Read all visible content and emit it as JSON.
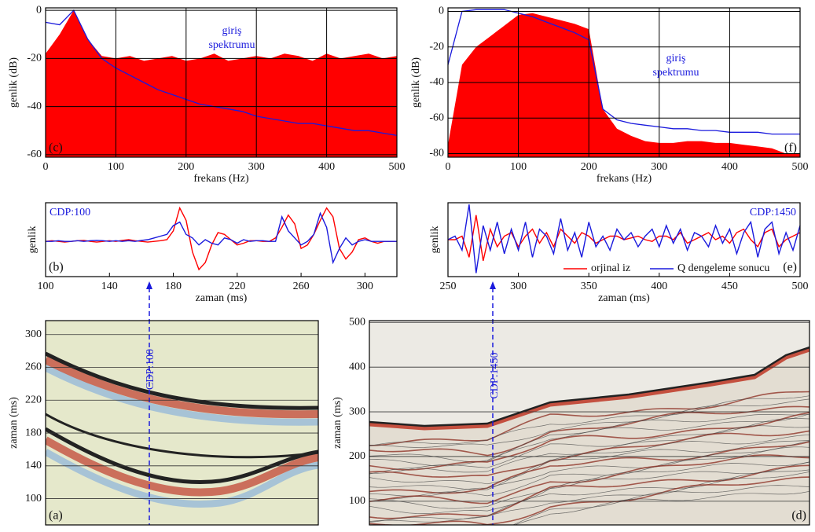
{
  "chart_data": [
    {
      "type": "area",
      "xlabel": "frekans (Hz)",
      "ylabel": "genlik (dB)",
      "label": "(c)",
      "annotation": [
        "giriş",
        "spektrumu"
      ],
      "xlim": [
        0,
        500
      ],
      "xticks": [
        0,
        100,
        200,
        300,
        400,
        500
      ],
      "ylim": [
        -61,
        1
      ],
      "yticks": [
        -60,
        -40,
        -20,
        0
      ],
      "grid": true,
      "x": [
        0,
        20,
        40,
        60,
        80,
        100,
        120,
        140,
        160,
        180,
        200,
        220,
        240,
        260,
        280,
        300,
        320,
        340,
        360,
        380,
        400,
        420,
        440,
        460,
        480,
        500
      ],
      "series": [
        {
          "color": "#ff0000",
          "style": "area",
          "values": [
            -18,
            -10,
            0,
            -12,
            -19,
            -20,
            -19,
            -21,
            -20,
            -19,
            -21,
            -20,
            -18,
            -21,
            -20,
            -19,
            -20,
            -18,
            -19,
            -21,
            -18,
            -20,
            -19,
            -18,
            -20,
            -19
          ]
        },
        {
          "color": "#1a1add",
          "style": "line",
          "values": [
            -5,
            -6,
            0,
            -12,
            -20,
            -24,
            -27,
            -30,
            -33,
            -35,
            -37,
            -39,
            -40,
            -41,
            -42,
            -44,
            -45,
            -46,
            -47,
            -47,
            -48,
            -49,
            -50,
            -50,
            -51,
            -52
          ]
        }
      ]
    },
    {
      "type": "area",
      "xlabel": "frekans (Hz)",
      "ylabel": "genlik (dB)",
      "label": "(f)",
      "annotation": [
        "giriş",
        "spektrumu"
      ],
      "xlim": [
        0,
        500
      ],
      "xticks": [
        0,
        100,
        200,
        300,
        400,
        500
      ],
      "ylim": [
        -82,
        2
      ],
      "yticks": [
        -80,
        -60,
        -40,
        -20,
        0
      ],
      "grid": true,
      "x": [
        0,
        20,
        40,
        60,
        80,
        100,
        120,
        140,
        160,
        180,
        200,
        220,
        240,
        260,
        280,
        300,
        320,
        340,
        360,
        380,
        400,
        420,
        440,
        460,
        480,
        500
      ],
      "series": [
        {
          "color": "#ff0000",
          "style": "area",
          "values": [
            -75,
            -30,
            -20,
            -14,
            -8,
            -2,
            -1,
            -3,
            -5,
            -7,
            -10,
            -55,
            -66,
            -70,
            -73,
            -74,
            -74,
            -73,
            -73,
            -74,
            -74,
            -75,
            -76,
            -77,
            -80,
            -80
          ]
        },
        {
          "color": "#1a1add",
          "style": "line",
          "values": [
            -30,
            0,
            1,
            1,
            1,
            -1,
            -3,
            -6,
            -9,
            -12,
            -16,
            -55,
            -61,
            -63,
            -64,
            -65,
            -66,
            -66,
            -67,
            -67,
            -68,
            -68,
            -68,
            -69,
            -69,
            -69
          ]
        }
      ]
    },
    {
      "type": "line",
      "xlabel": "zaman (ms)",
      "ylabel": "genlik",
      "label": "(b)",
      "annotation": "CDP:100",
      "xlim": [
        100,
        320
      ],
      "xticks": [
        100,
        140,
        180,
        220,
        260,
        300
      ],
      "ylim": [
        -1,
        1.1
      ],
      "grid": false,
      "x": [
        100,
        104,
        108,
        112,
        116,
        120,
        124,
        128,
        132,
        136,
        140,
        144,
        148,
        152,
        156,
        160,
        164,
        168,
        172,
        176,
        180,
        184,
        188,
        192,
        196,
        200,
        204,
        208,
        212,
        216,
        220,
        224,
        228,
        232,
        236,
        240,
        244,
        248,
        252,
        256,
        260,
        264,
        268,
        272,
        276,
        280,
        284,
        288,
        292,
        296,
        300,
        304,
        308,
        312,
        316,
        320
      ],
      "series": [
        {
          "color": "#ff0000",
          "style": "line",
          "values": [
            0,
            0.02,
            0,
            -0.02,
            0,
            0.02,
            0.03,
            0,
            -0.02,
            0,
            0.02,
            0,
            0.03,
            0.05,
            0.02,
            0,
            -0.02,
            0,
            0.02,
            0.05,
            0.3,
            0.95,
            0.6,
            -0.3,
            -0.8,
            -0.6,
            -0.1,
            0.25,
            0.2,
            0.05,
            -0.1,
            -0.05,
            0.02,
            0.02,
            0,
            0,
            0.1,
            0.4,
            0.75,
            0.5,
            -0.2,
            -0.1,
            0.2,
            0.6,
            0.95,
            0.7,
            -0.2,
            -0.5,
            -0.3,
            0.05,
            0.1,
            0,
            -0.05,
            0,
            0,
            0
          ]
        },
        {
          "color": "#1a1add",
          "style": "line",
          "values": [
            0,
            0,
            0.02,
            0,
            0,
            0.02,
            0,
            0.02,
            0.03,
            0.02,
            0,
            0.02,
            0,
            0.02,
            0,
            0.03,
            0.05,
            0.1,
            0.15,
            0.2,
            0.45,
            0.55,
            0.2,
            0.1,
            -0.1,
            0.05,
            -0.05,
            -0.1,
            0.1,
            0.05,
            -0.05,
            0.05,
            0,
            0.02,
            0.02,
            0,
            0,
            0.7,
            0.3,
            0.1,
            -0.1,
            0,
            0.2,
            0.8,
            0.4,
            -0.6,
            -0.2,
            0.1,
            -0.1,
            0,
            0.05,
            0,
            0,
            0,
            0,
            0
          ]
        }
      ]
    },
    {
      "type": "line",
      "xlabel": "zaman (ms)",
      "ylabel": "genlik",
      "label": "(e)",
      "annotation": "CDP:1450",
      "legend": "lower right",
      "xlim": [
        250,
        500
      ],
      "xticks": [
        250,
        300,
        350,
        400,
        450,
        500
      ],
      "ylim": [
        -1.05,
        1.05
      ],
      "grid": false,
      "x": [
        250,
        255,
        260,
        265,
        270,
        275,
        280,
        285,
        290,
        295,
        300,
        305,
        310,
        315,
        320,
        325,
        330,
        335,
        340,
        345,
        350,
        355,
        360,
        365,
        370,
        375,
        380,
        385,
        390,
        395,
        400,
        405,
        410,
        415,
        420,
        425,
        430,
        435,
        440,
        445,
        450,
        455,
        460,
        465,
        470,
        475,
        480,
        485,
        490,
        495,
        500
      ],
      "series": [
        {
          "name": "orjinal iz",
          "color": "#ff0000",
          "style": "line",
          "values": [
            0,
            0,
            0.1,
            -0.5,
            0.7,
            -0.6,
            0.3,
            -0.2,
            0.1,
            0.2,
            -0.2,
            0.1,
            0.3,
            -0.1,
            0.2,
            -0.2,
            0.3,
            0.1,
            -0.1,
            0.2,
            0.1,
            -0.1,
            0,
            0.1,
            0.1,
            0,
            0.05,
            0.1,
            0,
            -0.05,
            0.1,
            0.1,
            0,
            0.2,
            -0.1,
            0,
            0.1,
            0.2,
            0,
            0.1,
            -0.1,
            0.2,
            0.3,
            0,
            -0.2,
            0.2,
            0.3,
            -0.2,
            0,
            0.1,
            0.2
          ]
        },
        {
          "name": "Q dengeleme sonucu",
          "color": "#1a1add",
          "style": "line",
          "values": [
            0,
            0.1,
            -0.3,
            1,
            -0.95,
            0.4,
            -0.3,
            0.5,
            -0.4,
            0.3,
            -0.3,
            0.5,
            -0.5,
            0.3,
            0.1,
            -0.4,
            0.6,
            -0.3,
            0.2,
            -0.5,
            0.5,
            -0.2,
            0.1,
            -0.3,
            0.3,
            0,
            0.2,
            -0.2,
            0.1,
            0.3,
            -0.2,
            0.4,
            -0.1,
            0.3,
            -0.3,
            0.2,
            0.1,
            -0.2,
            0.4,
            -0.1,
            0.3,
            -0.4,
            0.2,
            0.5,
            -0.5,
            0.3,
            0.5,
            -0.4,
            0.2,
            -0.3,
            0.4
          ]
        }
      ]
    },
    {
      "type": "seismic",
      "ylabel": "zaman (ms)",
      "label": "(a)",
      "annotation": "CDP:100",
      "ylim": [
        68,
        317
      ],
      "yticks": [
        100,
        140,
        180,
        220,
        260,
        300
      ],
      "grid": true
    },
    {
      "type": "seismic",
      "ylabel": "zaman (ms)",
      "label": "(d)",
      "annotation": "CDP:1450",
      "ylim": [
        47,
        504
      ],
      "yticks": [
        100,
        200,
        300,
        400,
        500
      ],
      "grid": true
    }
  ]
}
